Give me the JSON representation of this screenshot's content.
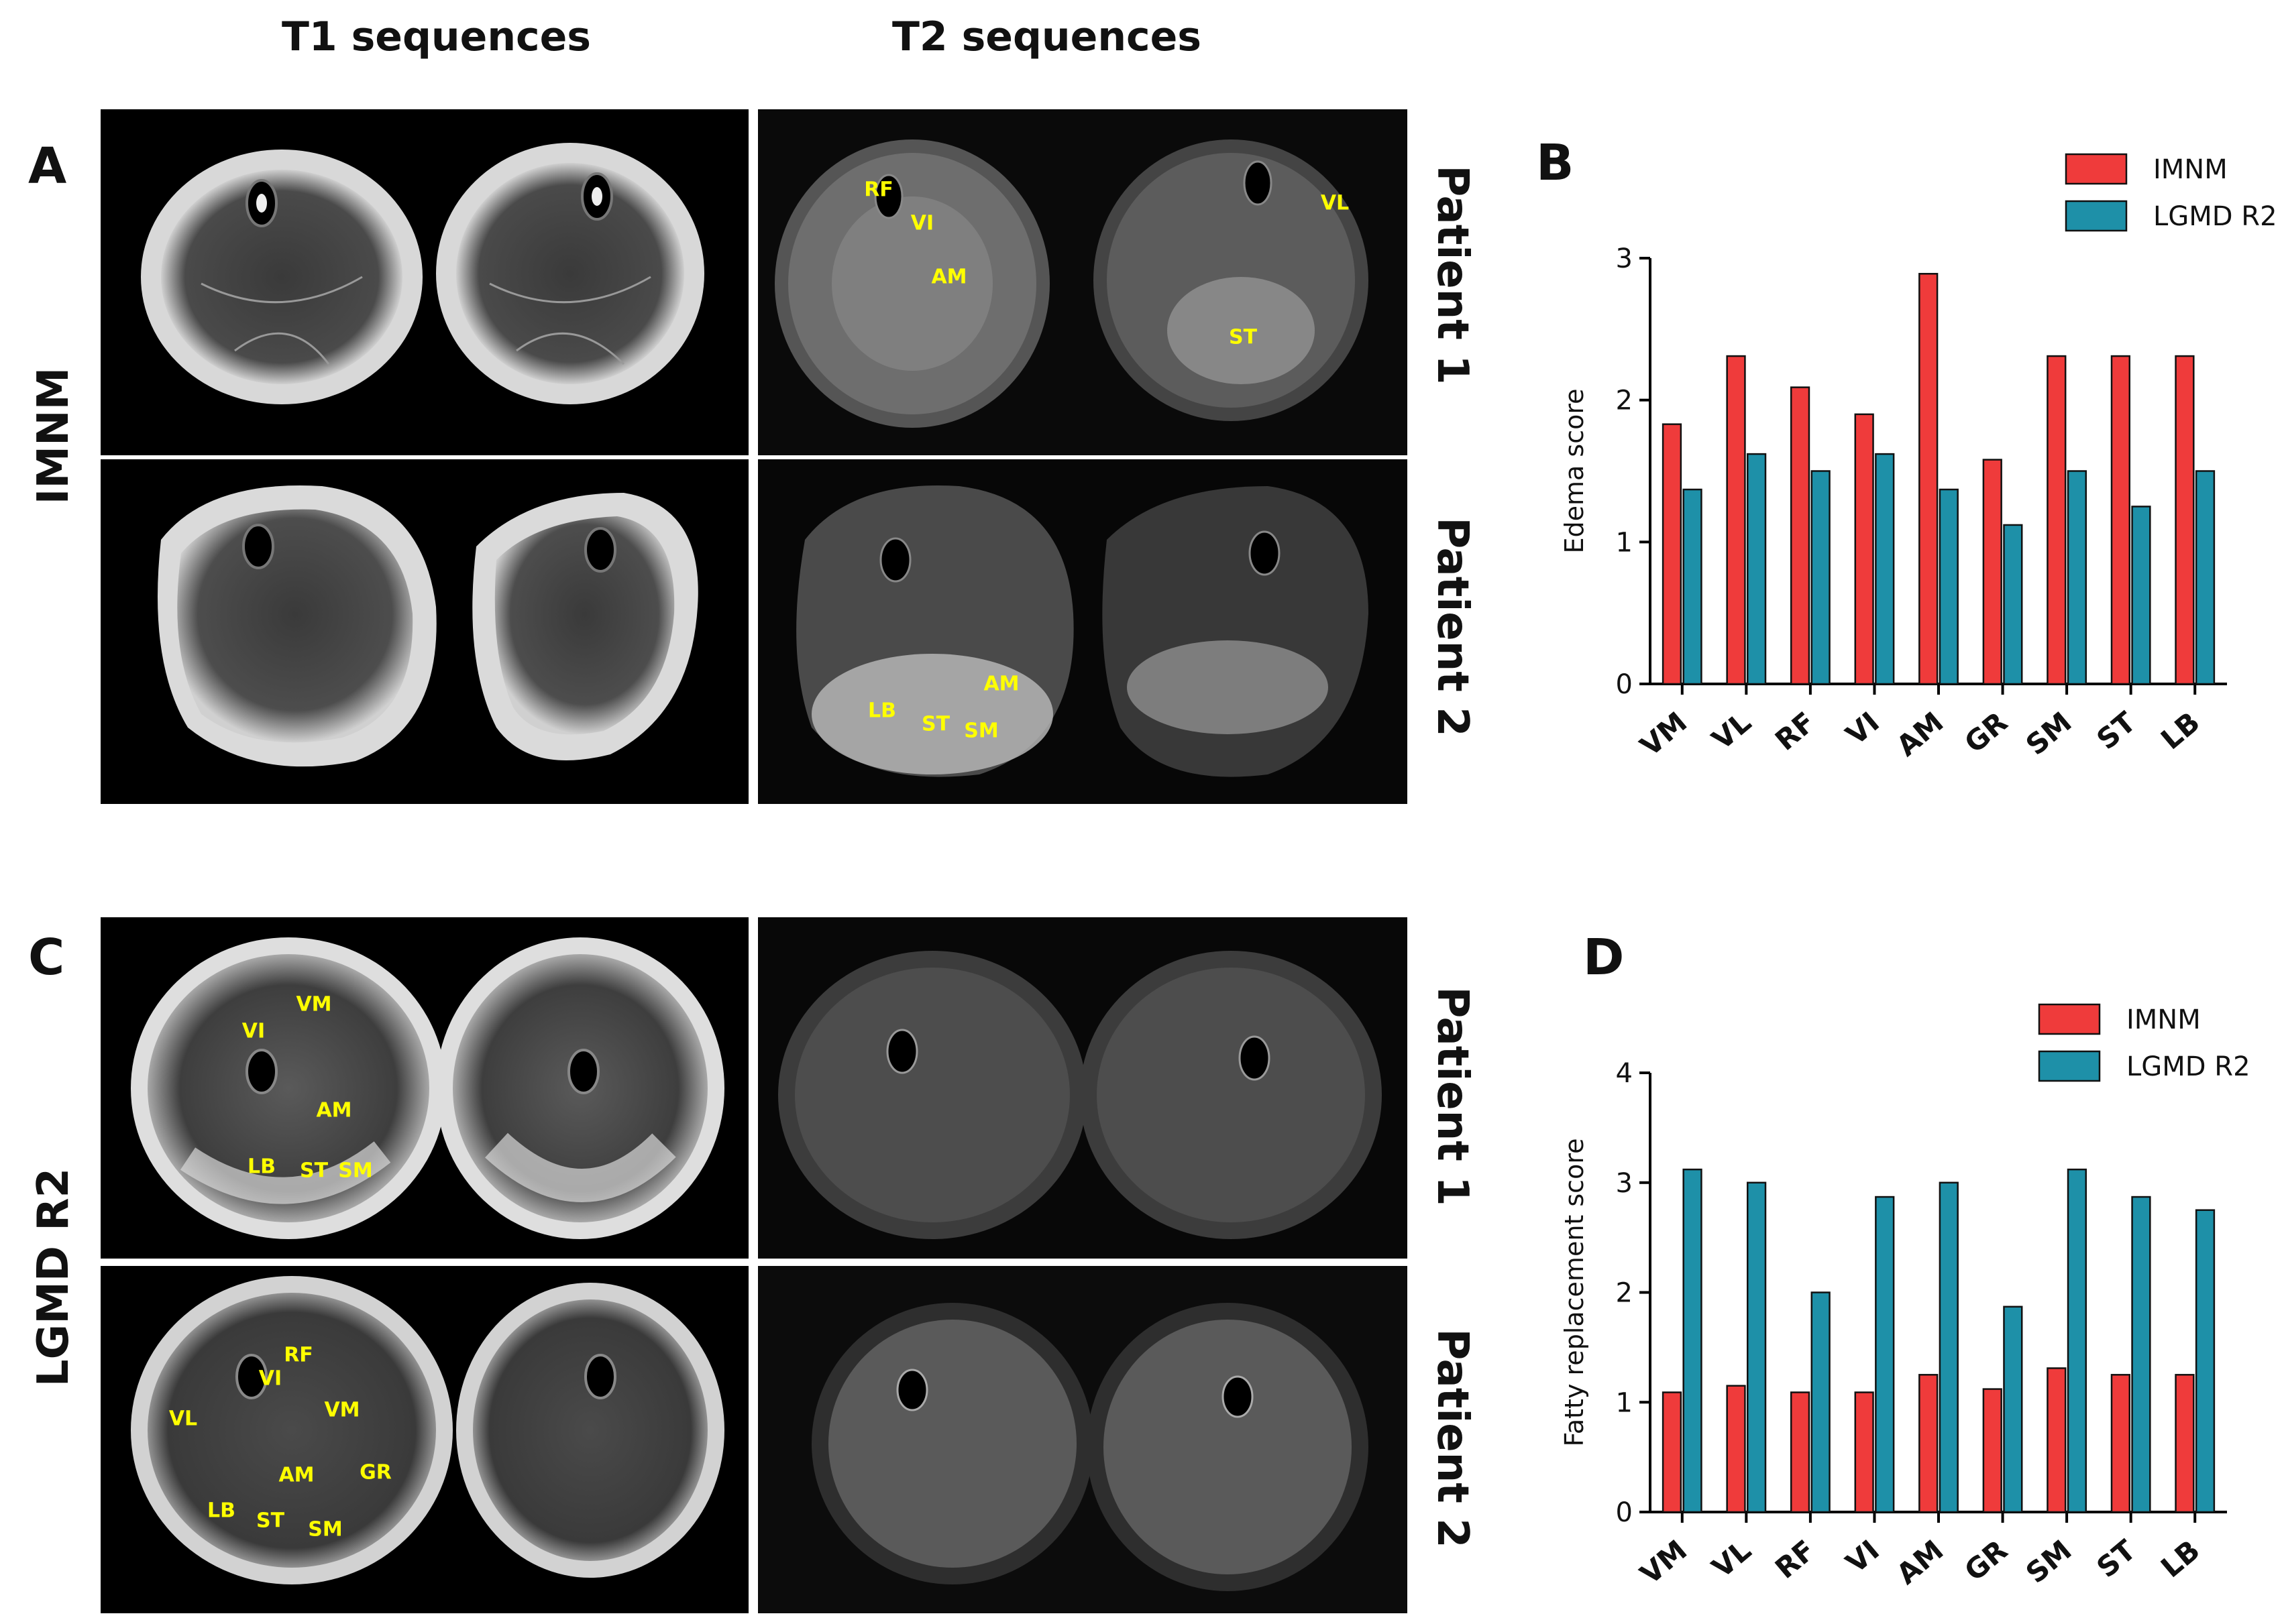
{
  "figure": {
    "t1_title": "T1 sequences",
    "t2_title": "T2 sequences",
    "panels": {
      "a": "A",
      "b": "B",
      "c": "C",
      "d": "D"
    },
    "groups": {
      "imnm": "IMNM",
      "lgmd": "LGMD R2"
    },
    "patients": {
      "p1": "Patient 1",
      "p2": "Patient 2"
    },
    "mri_labels": {
      "imnm_p1_t2": [
        "RF",
        "VI",
        "AM",
        "VL",
        "ST"
      ],
      "imnm_p2_t2": [
        "AM",
        "LB",
        "ST",
        "SM"
      ],
      "lgmd_p1_t1": [
        "VM",
        "VI",
        "AM",
        "LB",
        "ST",
        "SM"
      ],
      "lgmd_p2_t1": [
        "RF",
        "VI",
        "VL",
        "VM",
        "AM",
        "GR",
        "LB",
        "ST",
        "SM"
      ]
    }
  },
  "colors": {
    "imnm": "#ef3b3b",
    "lgmd": "#1e90a8",
    "muscle_label": "#ffff00"
  },
  "chart_data": [
    {
      "panel": "B",
      "type": "bar",
      "categories": [
        "VM",
        "VL",
        "RF",
        "VI",
        "AM",
        "GR",
        "SM",
        "ST",
        "LB"
      ],
      "series": [
        {
          "name": "IMNM",
          "values": [
            1.83,
            2.31,
            2.09,
            1.9,
            2.89,
            1.58,
            2.31,
            2.31,
            2.31
          ]
        },
        {
          "name": "LGMD R2",
          "values": [
            1.37,
            1.62,
            1.5,
            1.62,
            1.37,
            1.12,
            1.5,
            1.25,
            1.5
          ]
        }
      ],
      "ylabel": "Edema score",
      "xlabel": "",
      "ylim": [
        0,
        3
      ],
      "yticks": [
        "0",
        "1",
        "2",
        "3"
      ],
      "legend": "top-right"
    },
    {
      "panel": "D",
      "type": "bar",
      "categories": [
        "VM",
        "VL",
        "RF",
        "VI",
        "AM",
        "GR",
        "SM",
        "ST",
        "LB"
      ],
      "series": [
        {
          "name": "IMNM",
          "values": [
            1.09,
            1.15,
            1.09,
            1.09,
            1.25,
            1.12,
            1.31,
            1.25,
            1.25
          ]
        },
        {
          "name": "LGMD R2",
          "values": [
            3.12,
            3.0,
            2.0,
            2.87,
            3.0,
            1.87,
            3.12,
            2.87,
            2.75
          ]
        }
      ],
      "ylabel": "Fatty replacement score",
      "xlabel": "",
      "ylim": [
        0,
        4
      ],
      "yticks": [
        "0",
        "1",
        "2",
        "3",
        "4"
      ],
      "legend": "top-right"
    }
  ]
}
